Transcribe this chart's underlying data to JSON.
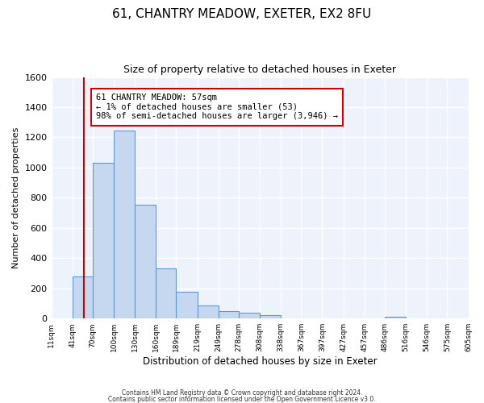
{
  "title": "61, CHANTRY MEADOW, EXETER, EX2 8FU",
  "subtitle": "Size of property relative to detached houses in Exeter",
  "xlabel": "Distribution of detached houses by size in Exeter",
  "ylabel": "Number of detached properties",
  "bar_color": "#c5d8f0",
  "bar_edge_color": "#5b9bd5",
  "background_color": "#eef2fa",
  "grid_color": "#ffffff",
  "bin_edges": [
    11,
    41,
    70,
    100,
    130,
    160,
    189,
    219,
    249,
    278,
    308,
    338,
    367,
    397,
    427,
    457,
    486,
    516,
    546,
    575,
    605
  ],
  "bin_labels": [
    "11sqm",
    "41sqm",
    "70sqm",
    "100sqm",
    "130sqm",
    "160sqm",
    "189sqm",
    "219sqm",
    "249sqm",
    "278sqm",
    "308sqm",
    "338sqm",
    "367sqm",
    "397sqm",
    "427sqm",
    "457sqm",
    "486sqm",
    "516sqm",
    "546sqm",
    "575sqm",
    "605sqm"
  ],
  "counts": [
    0,
    280,
    1030,
    1245,
    755,
    330,
    175,
    85,
    50,
    37,
    20,
    0,
    0,
    0,
    0,
    0,
    13,
    0,
    0,
    0
  ],
  "ylim": [
    0,
    1600
  ],
  "yticks": [
    0,
    200,
    400,
    600,
    800,
    1000,
    1200,
    1400,
    1600
  ],
  "vline_x": 57,
  "vline_color": "#cc0000",
  "annotation_title": "61 CHANTRY MEADOW: 57sqm",
  "annotation_line1": "← 1% of detached houses are smaller (53)",
  "annotation_line2": "98% of semi-detached houses are larger (3,946) →",
  "annotation_box_edge": "#cc0000",
  "footnote1": "Contains HM Land Registry data © Crown copyright and database right 2024.",
  "footnote2": "Contains public sector information licensed under the Open Government Licence v3.0."
}
